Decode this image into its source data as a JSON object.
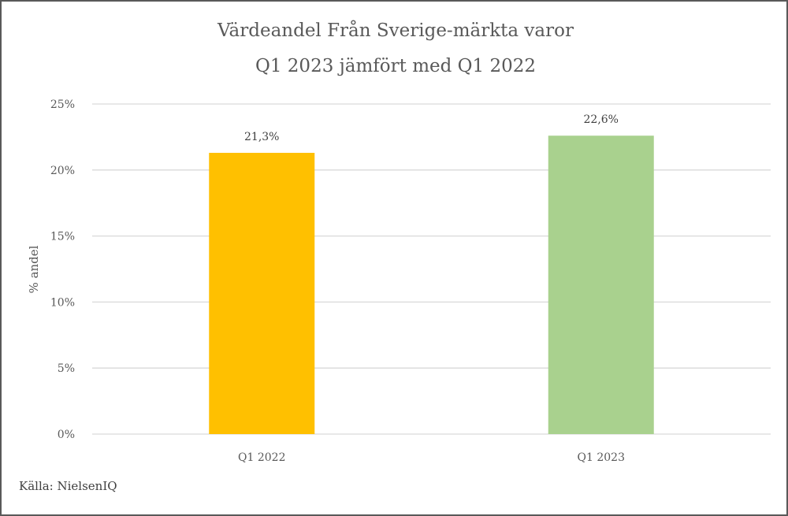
{
  "chart_data": {
    "type": "bar",
    "title": "Värdeandel Från Sverige-märkta varor",
    "subtitle": "Q1 2023 jämfört med Q1 2022",
    "categories": [
      "Q1 2022",
      "Q1 2023"
    ],
    "values": [
      21.3,
      22.6
    ],
    "data_labels": [
      "21,3%",
      "22,6%"
    ],
    "colors": [
      "#FFC000",
      "#A9D18E"
    ],
    "xlabel": "",
    "ylabel": "% andel",
    "ylim": [
      0,
      25
    ],
    "yticks": [
      0,
      5,
      10,
      15,
      20,
      25
    ],
    "ytick_labels": [
      "0%",
      "5%",
      "10%",
      "15%",
      "20%",
      "25%"
    ],
    "grid": true,
    "legend": "none"
  },
  "source": "Källa: NielsenIQ"
}
